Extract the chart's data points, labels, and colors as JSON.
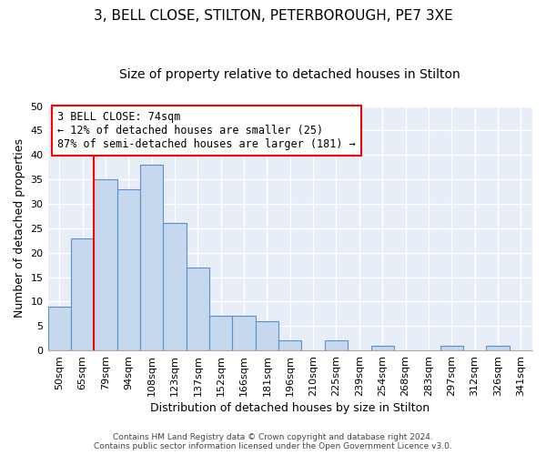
{
  "title1": "3, BELL CLOSE, STILTON, PETERBOROUGH, PE7 3XE",
  "title2": "Size of property relative to detached houses in Stilton",
  "xlabel": "Distribution of detached houses by size in Stilton",
  "ylabel": "Number of detached properties",
  "categories": [
    "50sqm",
    "65sqm",
    "79sqm",
    "94sqm",
    "108sqm",
    "123sqm",
    "137sqm",
    "152sqm",
    "166sqm",
    "181sqm",
    "196sqm",
    "210sqm",
    "225sqm",
    "239sqm",
    "254sqm",
    "268sqm",
    "283sqm",
    "297sqm",
    "312sqm",
    "326sqm",
    "341sqm"
  ],
  "values": [
    9,
    23,
    35,
    33,
    38,
    26,
    17,
    7,
    7,
    6,
    2,
    0,
    2,
    0,
    1,
    0,
    0,
    1,
    0,
    1,
    0
  ],
  "bar_color": "#c5d8ee",
  "bar_edge_color": "#5b8fc9",
  "ylim": [
    0,
    50
  ],
  "yticks": [
    0,
    5,
    10,
    15,
    20,
    25,
    30,
    35,
    40,
    45,
    50
  ],
  "annotation_line1": "3 BELL CLOSE: 74sqm",
  "annotation_line2": "← 12% of detached houses are smaller (25)",
  "annotation_line3": "87% of semi-detached houses are larger (181) →",
  "red_line_x": 1.5,
  "footer1": "Contains HM Land Registry data © Crown copyright and database right 2024.",
  "footer2": "Contains public sector information licensed under the Open Government Licence v3.0.",
  "background_color": "#e8eef8",
  "grid_color": "#ffffff",
  "title_fontsize": 11,
  "subtitle_fontsize": 10,
  "tick_fontsize": 8,
  "ylabel_fontsize": 9,
  "xlabel_fontsize": 9,
  "annotation_fontsize": 8.5,
  "footer_fontsize": 6.5
}
